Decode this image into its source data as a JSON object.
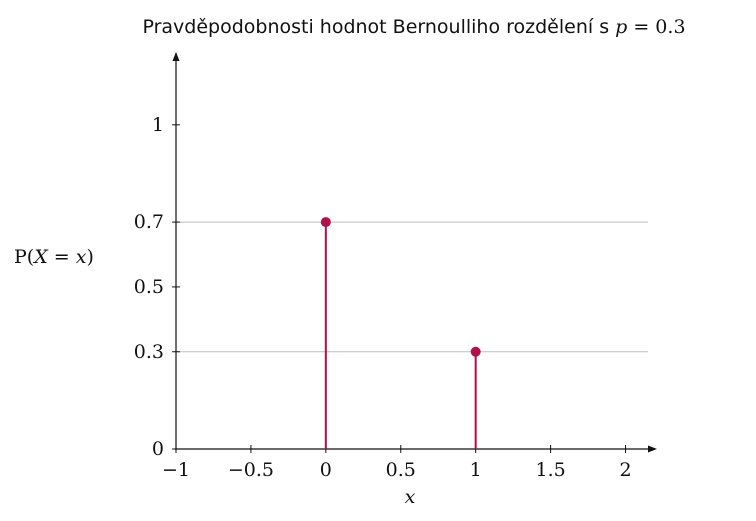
{
  "chart_data": {
    "type": "stem",
    "title_text": "Pravděpodobnosti hodnot Bernoulliho rozdělení s ",
    "title_math_var": "p",
    "title_math_eq": " = 0.3",
    "ylabel_prefix": "P(",
    "ylabel_var1": "X",
    "ylabel_mid": " = ",
    "ylabel_var2": "x",
    "ylabel_suffix": ")",
    "xlabel": "x",
    "xlim": [
      -1,
      2.15
    ],
    "ylim": [
      0,
      1.2
    ],
    "x_ticks": [
      {
        "value": -1,
        "label": "−1"
      },
      {
        "value": -0.5,
        "label": "−0.5"
      },
      {
        "value": 0,
        "label": "0"
      },
      {
        "value": 0.5,
        "label": "0.5"
      },
      {
        "value": 1,
        "label": "1"
      },
      {
        "value": 1.5,
        "label": "1.5"
      },
      {
        "value": 2,
        "label": "2"
      }
    ],
    "y_ticks": [
      {
        "value": 0,
        "label": "0"
      },
      {
        "value": 0.3,
        "label": "0.3"
      },
      {
        "value": 0.5,
        "label": "0.5"
      },
      {
        "value": 0.7,
        "label": "0.7"
      },
      {
        "value": 1,
        "label": "1"
      }
    ],
    "gridlines_y": [
      0.3,
      0.7
    ],
    "points": [
      {
        "x": 0,
        "y": 0.7
      },
      {
        "x": 1,
        "y": 0.3
      }
    ],
    "colors": {
      "stem": "#b0104e",
      "grid": "#bdbdbd",
      "axis": "#111111"
    }
  }
}
